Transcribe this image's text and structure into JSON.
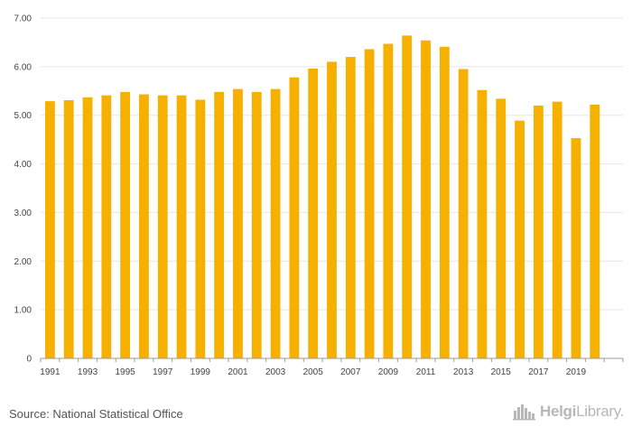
{
  "chart_data": {
    "type": "bar",
    "title": "",
    "xlabel": "",
    "ylabel": "",
    "ylim": [
      0,
      7
    ],
    "y_ticks": [
      0,
      1,
      2,
      3,
      4,
      5,
      6,
      7
    ],
    "y_tick_labels": [
      "0",
      "1.00",
      "2.00",
      "3.00",
      "4.00",
      "5.00",
      "6.00",
      "7.00"
    ],
    "categories": [
      "1991",
      "1992",
      "1993",
      "1994",
      "1995",
      "1996",
      "1997",
      "1998",
      "1999",
      "2000",
      "2001",
      "2002",
      "2003",
      "2004",
      "2005",
      "2006",
      "2007",
      "2008",
      "2009",
      "2010",
      "2011",
      "2012",
      "2013",
      "2014",
      "2015",
      "2016",
      "2017",
      "2018",
      "2019",
      "2020",
      "2021"
    ],
    "x_tick_labels": [
      "1991",
      "1993",
      "1995",
      "1997",
      "1999",
      "2001",
      "2003",
      "2005",
      "2007",
      "2009",
      "2011",
      "2013",
      "2015",
      "2017",
      "2019"
    ],
    "values": [
      5.29,
      5.31,
      5.37,
      5.41,
      5.48,
      5.43,
      5.41,
      5.41,
      5.32,
      5.48,
      5.54,
      5.48,
      5.54,
      5.78,
      5.96,
      6.1,
      6.2,
      6.36,
      6.47,
      6.64,
      6.54,
      6.41,
      5.95,
      5.52,
      5.34,
      4.89,
      5.2,
      5.28,
      4.53,
      5.22,
      0
    ],
    "bar_color": "#f5b000",
    "grid": true
  },
  "footer": {
    "source": "Source: National Statistical Office",
    "brand_bold": "Helgi",
    "brand_light": "Library."
  },
  "colors": {
    "bar": "#f5b000",
    "grid": "#e6e6e6",
    "axis": "#9a9a9a",
    "brand": "#b7b7b7"
  }
}
